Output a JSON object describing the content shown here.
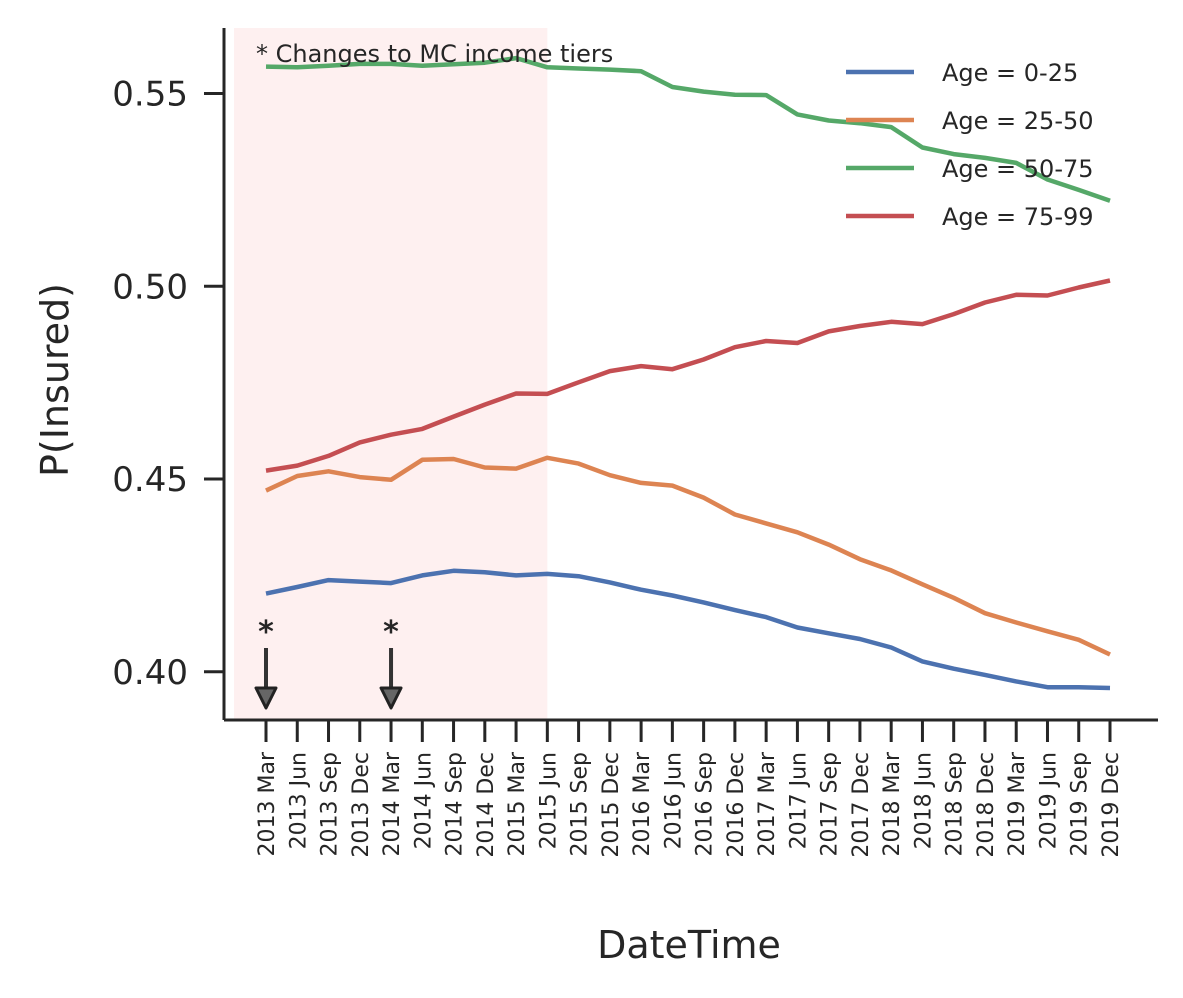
{
  "chart_data": {
    "type": "line",
    "xlabel": "DateTime",
    "ylabel": "P(Insured)",
    "ylim": [
      0.3875,
      0.567
    ],
    "yticks": [
      "0.40",
      "0.45",
      "0.50",
      "0.55"
    ],
    "categories": [
      "2013 Mar",
      "2013 Jun",
      "2013 Sep",
      "2013 Dec",
      "2014 Mar",
      "2014 Jun",
      "2014 Sep",
      "2014 Dec",
      "2015 Mar",
      "2015 Jun",
      "2015 Sep",
      "2015 Dec",
      "2016 Mar",
      "2016 Jun",
      "2016 Sep",
      "2016 Dec",
      "2017 Mar",
      "2017 Jun",
      "2017 Sep",
      "2017 Dec",
      "2018 Mar",
      "2018 Jun",
      "2018 Sep",
      "2018 Dec",
      "2019 Mar",
      "2019 Jun",
      "2019 Sep",
      "2019 Dec"
    ],
    "series": [
      {
        "name": "Age = 0-25",
        "color": "#4c72b0",
        "values": [
          0.4203,
          0.422,
          0.4238,
          0.4234,
          0.423,
          0.425,
          0.4262,
          0.4258,
          0.425,
          0.4254,
          0.4248,
          0.4232,
          0.4213,
          0.4198,
          0.418,
          0.416,
          0.4142,
          0.4115,
          0.41,
          0.4085,
          0.4063,
          0.4027,
          0.4008,
          0.3992,
          0.3975,
          0.396,
          0.396,
          0.3958
        ]
      },
      {
        "name": "Age = 25-50",
        "color": "#dd8452",
        "values": [
          0.447,
          0.4508,
          0.452,
          0.4505,
          0.4498,
          0.455,
          0.4552,
          0.453,
          0.4527,
          0.4555,
          0.454,
          0.451,
          0.449,
          0.4483,
          0.4452,
          0.4408,
          0.4385,
          0.4362,
          0.433,
          0.4292,
          0.4263,
          0.4227,
          0.4192,
          0.4152,
          0.4128,
          0.4105,
          0.4083,
          0.4045
        ]
      },
      {
        "name": "Age = 50-75",
        "color": "#55a868",
        "values": [
          0.557,
          0.5568,
          0.5572,
          0.5577,
          0.5577,
          0.5572,
          0.5576,
          0.558,
          0.5592,
          0.5568,
          0.5565,
          0.5562,
          0.5558,
          0.5517,
          0.5505,
          0.5497,
          0.5496,
          0.5446,
          0.543,
          0.5423,
          0.5413,
          0.536,
          0.5343,
          0.5333,
          0.532,
          0.5277,
          0.525,
          0.5222
        ]
      },
      {
        "name": "Age = 75-99",
        "color": "#c44e52",
        "values": [
          0.4522,
          0.4535,
          0.456,
          0.4595,
          0.4615,
          0.463,
          0.4662,
          0.4693,
          0.4722,
          0.4721,
          0.4751,
          0.478,
          0.4793,
          0.4785,
          0.481,
          0.4842,
          0.4858,
          0.4853,
          0.4883,
          0.4897,
          0.4908,
          0.4902,
          0.4928,
          0.4958,
          0.4978,
          0.4976,
          0.4997,
          0.5015
        ]
      }
    ],
    "shaded_region": {
      "from": "2013 Mar",
      "to": "2015 Jun",
      "color": "#fdeaea"
    },
    "annotations": {
      "note": "* Changes to MC income tiers",
      "markers": [
        {
          "category": "2013 Mar",
          "text": "*"
        },
        {
          "category": "2014 Mar",
          "text": "*"
        }
      ]
    },
    "legend_position": "top-right",
    "grid": false
  }
}
